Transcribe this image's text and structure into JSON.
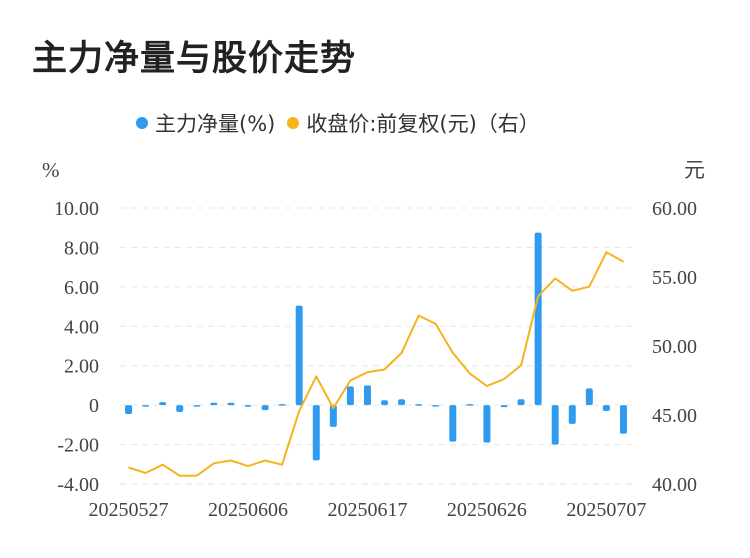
{
  "title": "主力净量与股价走势",
  "legend": [
    {
      "label": "主力净量(%)",
      "color": "#2e9bf0"
    },
    {
      "label": "收盘价:前复权(元)（右）",
      "color": "#f5b31c"
    }
  ],
  "chart_data": {
    "type": "bar+line",
    "left_axis": {
      "unit": "%",
      "ticks": [
        "10.00",
        "8.00",
        "6.00",
        "4.00",
        "2.00",
        "0",
        "-2.00",
        "-4.00"
      ],
      "ylim": [
        -4,
        10
      ]
    },
    "right_axis": {
      "unit": "元",
      "ticks": [
        "60.00",
        "55.00",
        "50.00",
        "45.00",
        "40.00"
      ],
      "ylim": [
        40,
        60
      ]
    },
    "x_labels": [
      "20250527",
      "20250606",
      "20250617",
      "20250626",
      "20250707"
    ],
    "series": [
      {
        "name": "主力净量(%)",
        "type": "bar",
        "color": "#2e9bf0",
        "values": [
          -0.45,
          -0.05,
          0.15,
          -0.35,
          -0.05,
          0.12,
          0.12,
          -0.08,
          -0.25,
          0.05,
          5.05,
          -2.8,
          -1.1,
          0.95,
          1.0,
          0.25,
          0.3,
          0.05,
          -0.05,
          -1.85,
          0.05,
          -1.9,
          -0.1,
          0.3,
          8.75,
          -2.0,
          -0.95,
          0.85,
          -0.3,
          -1.45
        ]
      },
      {
        "name": "收盘价:前复权(元)（右）",
        "type": "line",
        "color": "#f5b31c",
        "values": [
          41.2,
          40.8,
          41.4,
          40.6,
          40.6,
          41.5,
          41.7,
          41.3,
          41.7,
          41.4,
          45.3,
          47.8,
          45.5,
          47.5,
          48.1,
          48.3,
          49.5,
          52.2,
          51.6,
          49.5,
          48.0,
          47.1,
          47.6,
          48.6,
          53.6,
          54.9,
          54.0,
          54.3,
          56.8,
          56.1
        ]
      }
    ]
  }
}
